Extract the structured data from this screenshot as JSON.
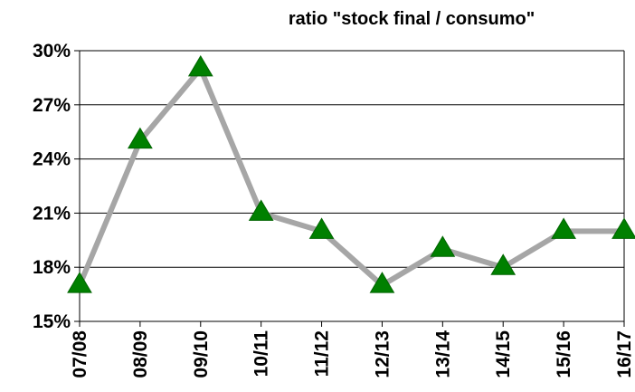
{
  "chart_data": {
    "type": "line",
    "title": "ratio \"stock final / consumo\"",
    "xlabel": "",
    "ylabel": "",
    "categories": [
      "07/08",
      "08/09",
      "09/10",
      "10/11",
      "11/12",
      "12/13",
      "13/14",
      "14/15",
      "15/16",
      "16/17"
    ],
    "series": [
      {
        "values": [
          17,
          25,
          29,
          21,
          20,
          17,
          19,
          18,
          20,
          20
        ]
      }
    ],
    "ylim": [
      15,
      30
    ],
    "yticks": [
      15,
      18,
      21,
      24,
      27,
      30
    ],
    "ytick_labels": [
      "15%",
      "18%",
      "21%",
      "24%",
      "27%",
      "30%"
    ],
    "grid": true,
    "line_color": "#a6a6a6",
    "marker": "triangle",
    "marker_color": "#008000"
  }
}
